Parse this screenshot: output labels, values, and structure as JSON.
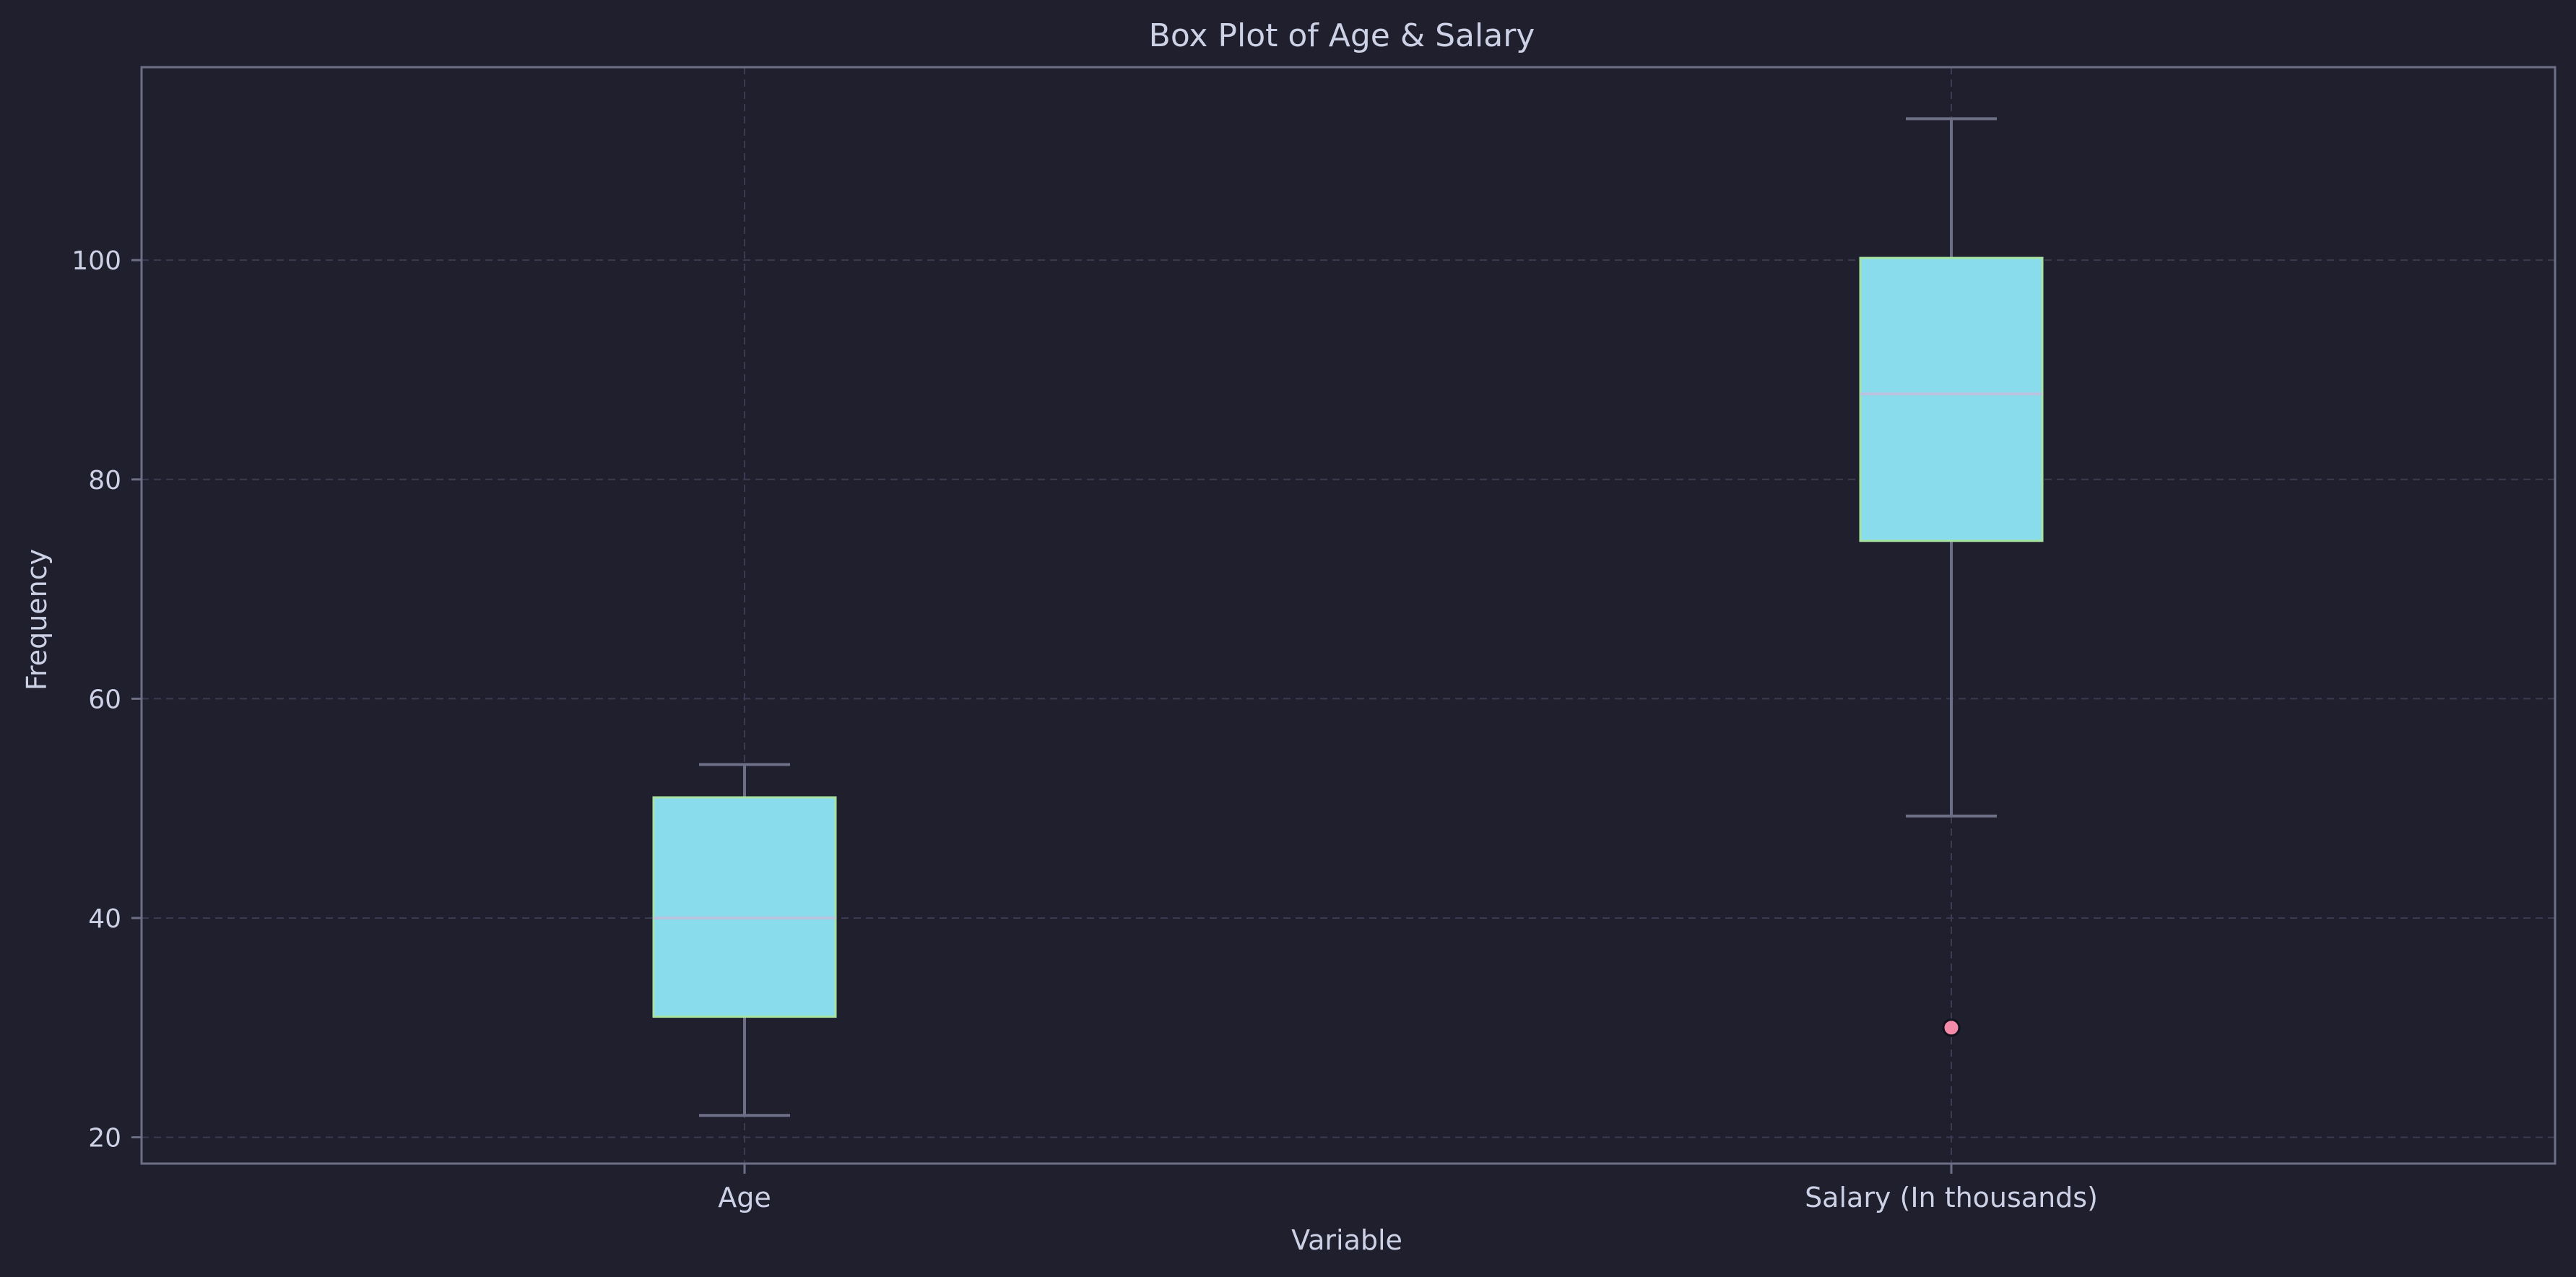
{
  "chart_data": {
    "type": "box",
    "title": "Box Plot of Age & Salary",
    "xlabel": "Variable",
    "ylabel": "Frequency",
    "ylim": [
      17.6,
      117.6
    ],
    "yticks": [
      20,
      40,
      60,
      80,
      100
    ],
    "grid": true,
    "categories": [
      "Age",
      "Salary (In thousands)"
    ],
    "boxes": [
      {
        "label": "Age",
        "whisker_low": 22,
        "q1": 31,
        "median": 40,
        "q3": 51,
        "whisker_high": 54,
        "outliers": []
      },
      {
        "label": "Salary (In thousands)",
        "whisker_low": 49.3,
        "q1": 74.4,
        "median": 87.8,
        "q3": 100.2,
        "whisker_high": 112.9,
        "outliers": [
          30
        ]
      }
    ]
  },
  "colors": {
    "background": "#1f1f2e",
    "text": "#cdd1e6",
    "spine": "#6c6f85",
    "grid": "#3a3b50",
    "box_fill": "#89dceb",
    "box_edge": "#a6e3a1",
    "median": "#bac2de",
    "whisker": "#6c6f85",
    "outlier_fill": "#f38ba8",
    "outlier_edge": "#11111b"
  }
}
